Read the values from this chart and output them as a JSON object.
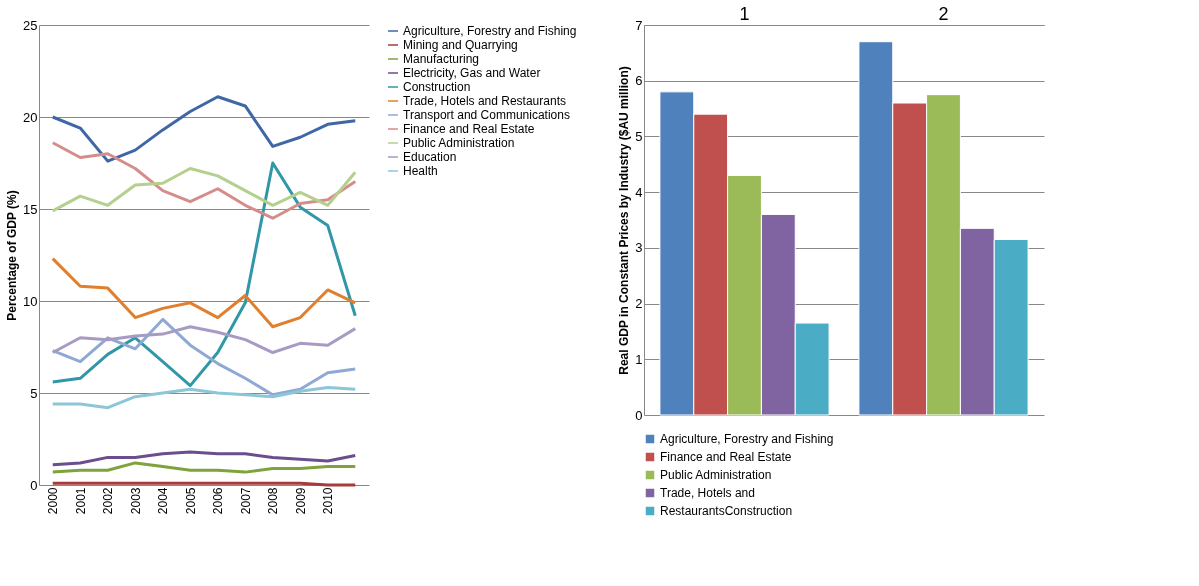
{
  "chart_data": [
    {
      "type": "line",
      "ylabel": "Percentage of GDP (%)",
      "categories": [
        "2000",
        "2001",
        "2002",
        "2003",
        "2004",
        "2005",
        "2006",
        "2007",
        "2008",
        "2009",
        "2010",
        null
      ],
      "ylim": [
        0,
        25
      ],
      "yticks": [
        0,
        5,
        10,
        15,
        20,
        25
      ],
      "grid": "y",
      "legend": "right",
      "series": [
        {
          "name": "Agriculture, Forestry and Fishing",
          "color": "#3f67a6",
          "values": [
            20.0,
            19.4,
            17.6,
            18.2,
            19.3,
            20.3,
            21.1,
            20.6,
            18.4,
            18.9,
            19.6,
            19.8
          ]
        },
        {
          "name": "Mining and Quarrying",
          "color": "#a83a3a",
          "values": [
            0.1,
            0.1,
            0.1,
            0.1,
            0.1,
            0.1,
            0.1,
            0.1,
            0.1,
            0.1,
            0.0,
            0.0
          ]
        },
        {
          "name": "Manufacturing",
          "color": "#7fa33c",
          "values": [
            0.7,
            0.8,
            0.8,
            1.2,
            1.0,
            0.8,
            0.8,
            0.7,
            0.9,
            0.9,
            1.0,
            1.0
          ]
        },
        {
          "name": "Electricity, Gas and Water",
          "color": "#6a4e8f",
          "values": [
            1.1,
            1.2,
            1.5,
            1.5,
            1.7,
            1.8,
            1.7,
            1.7,
            1.5,
            1.4,
            1.3,
            1.6
          ]
        },
        {
          "name": "Construction",
          "color": "#3296a9",
          "values": [
            5.6,
            5.8,
            7.1,
            8.0,
            6.7,
            5.4,
            7.2,
            9.9,
            17.5,
            15.1,
            14.1,
            9.2
          ]
        },
        {
          "name": "Trade, Hotels and Restaurants",
          "color": "#e07f2e",
          "values": [
            12.3,
            10.8,
            10.7,
            9.1,
            9.6,
            9.9,
            9.1,
            10.3,
            8.6,
            9.1,
            10.6,
            9.9
          ]
        },
        {
          "name": "Transport and Communications",
          "color": "#8ea9d4",
          "values": [
            7.3,
            6.7,
            8.0,
            7.4,
            9.0,
            7.6,
            6.6,
            5.8,
            4.9,
            5.2,
            6.1,
            6.3
          ]
        },
        {
          "name": "Finance and Real Estate",
          "color": "#d48d8a",
          "values": [
            18.6,
            17.8,
            18.0,
            17.2,
            16.0,
            15.4,
            16.1,
            15.2,
            14.5,
            15.3,
            15.5,
            16.5
          ]
        },
        {
          "name": "Public Administration",
          "color": "#b5cf8e",
          "values": [
            14.9,
            15.7,
            15.2,
            16.3,
            16.4,
            17.2,
            16.8,
            16.0,
            15.2,
            15.9,
            15.2,
            17.0
          ]
        },
        {
          "name": "Education",
          "color": "#a79bc4",
          "values": [
            7.2,
            8.0,
            7.9,
            8.1,
            8.2,
            8.6,
            8.3,
            7.9,
            7.2,
            7.7,
            7.6,
            8.5
          ]
        },
        {
          "name": "Health",
          "color": "#8cc6d8",
          "values": [
            4.4,
            4.4,
            4.2,
            4.8,
            5.0,
            5.2,
            5.0,
            4.9,
            4.8,
            5.1,
            5.3,
            5.2
          ]
        }
      ]
    },
    {
      "type": "bar",
      "ylabel": "Real GDP in Constant Prices by Industry ($AU million)",
      "categories": [
        "1",
        "2"
      ],
      "ylim": [
        0,
        7
      ],
      "yticks": [
        0,
        1,
        2,
        3,
        4,
        5,
        6,
        7
      ],
      "grid": "y",
      "legend": "bottom",
      "series": [
        {
          "name": "Agriculture, Forestry and Fishing",
          "color": "#4f81bd",
          "values": [
            5.8,
            6.7
          ]
        },
        {
          "name": "Finance and Real Estate",
          "color": "#c0504d",
          "values": [
            5.4,
            5.6
          ]
        },
        {
          "name": "Public Administration",
          "color": "#9bbb59",
          "values": [
            4.3,
            5.75
          ]
        },
        {
          "name": "Trade, Hotels and",
          "color": "#8064a2",
          "values": [
            3.6,
            3.35
          ]
        },
        {
          "name": "RestaurantsConstruction",
          "color": "#4bacc6",
          "values": [
            1.65,
            3.15
          ]
        }
      ]
    }
  ]
}
